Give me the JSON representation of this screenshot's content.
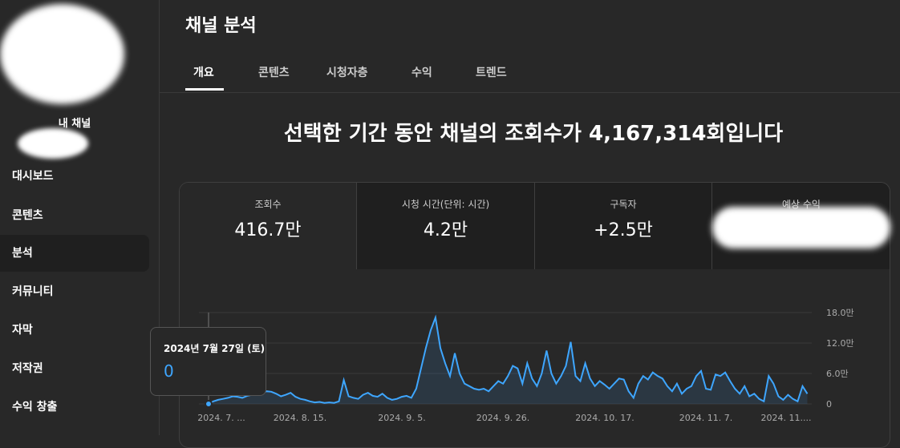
{
  "sidebar": {
    "channel_label": "내 채널",
    "nav": [
      "대시보드",
      "콘텐츠",
      "분석",
      "커뮤니티",
      "자막",
      "저작권",
      "수익 창출"
    ]
  },
  "header": {
    "title": "채널 분석",
    "tabs": [
      "개요",
      "콘텐츠",
      "시청자층",
      "수익",
      "트렌드"
    ]
  },
  "headline": "선택한 기간 동안 채널의 조회수가 4,167,314회입니다",
  "metrics": [
    {
      "label": "조회수",
      "value": "416.7만"
    },
    {
      "label": "시청 시간(단위: 시간)",
      "value": "4.2만"
    },
    {
      "label": "구독자",
      "value": "+2.5만"
    },
    {
      "label": "예상 수익"
    }
  ],
  "chart": {
    "type": "line",
    "color": "#3ea6ff",
    "grid": true,
    "values": [
      0,
      5000,
      8000,
      10000,
      12000,
      15000,
      14000,
      12000,
      16000,
      18000,
      20000,
      22000,
      25000,
      24000,
      20000,
      15000,
      18000,
      22000,
      14000,
      10000,
      8000,
      5000,
      3000,
      4000,
      2000,
      3000,
      2000,
      5000,
      47000,
      15000,
      12000,
      10000,
      18000,
      22000,
      16000,
      14000,
      20000,
      12000,
      8000,
      10000,
      14000,
      16000,
      12000,
      30000,
      70000,
      110000,
      145000,
      170000,
      110000,
      80000,
      55000,
      100000,
      60000,
      40000,
      35000,
      30000,
      28000,
      30000,
      25000,
      35000,
      45000,
      40000,
      55000,
      75000,
      70000,
      40000,
      80000,
      50000,
      35000,
      60000,
      105000,
      60000,
      40000,
      55000,
      75000,
      122000,
      55000,
      45000,
      80000,
      50000,
      35000,
      45000,
      38000,
      30000,
      40000,
      50000,
      48000,
      25000,
      12000,
      40000,
      55000,
      48000,
      62000,
      55000,
      50000,
      35000,
      25000,
      40000,
      20000,
      30000,
      35000,
      55000,
      65000,
      30000,
      28000,
      58000,
      55000,
      62000,
      45000,
      30000,
      20000,
      35000,
      15000,
      20000,
      10000,
      5000,
      55000,
      40000,
      15000,
      8000,
      18000,
      10000,
      5000,
      35000,
      20000
    ],
    "ylim": [
      0,
      180000
    ],
    "yticks": [
      0,
      {
        "value": 60000,
        "label": "6.0만"
      },
      {
        "value": 120000,
        "label": "12.0만"
      },
      {
        "value": 180000,
        "label": "18.0만"
      }
    ],
    "xtick_labels": [
      "2024. 7. ...",
      "2024. 8. 15.",
      "2024. 9. 5.",
      "2024. 9. 26.",
      "2024. 10. 17.",
      "2024. 11. 7.",
      "2024. 11...."
    ]
  },
  "tooltip": {
    "date": "2024년 7월 27일 (토)",
    "value": 0
  }
}
